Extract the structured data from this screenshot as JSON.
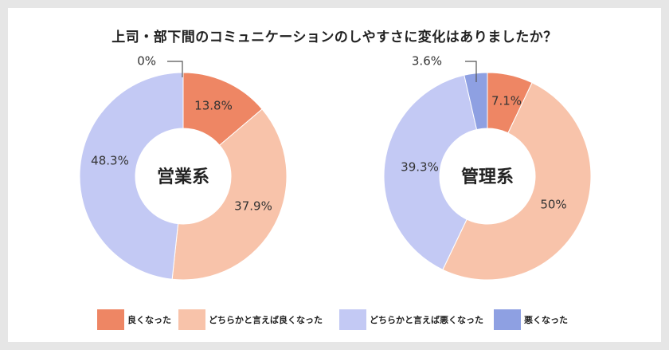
{
  "title": "上司・部下間のコミュニケーションのしやすさに変化はありましたか？",
  "chart_data": {
    "type": "pie",
    "legend": [
      {
        "label": "良くなった",
        "color": "#ee8664"
      },
      {
        "label": "どちらかと言えば良くなった",
        "color": "#f8c3aa"
      },
      {
        "label": "どちらかと言えば悪くなった",
        "color": "#c3c9f4"
      },
      {
        "label": "悪くなった",
        "color": "#8ea0e2"
      }
    ],
    "charts": [
      {
        "name": "営業系",
        "values": [
          13.8,
          37.9,
          48.3,
          0
        ],
        "labels": [
          "13.8%",
          "37.9%",
          "48.3%",
          "0%"
        ]
      },
      {
        "name": "管理系",
        "values": [
          7.1,
          50,
          39.3,
          3.6
        ],
        "labels": [
          "7.1%",
          "50%",
          "39.3%",
          "3.6%"
        ]
      }
    ]
  }
}
